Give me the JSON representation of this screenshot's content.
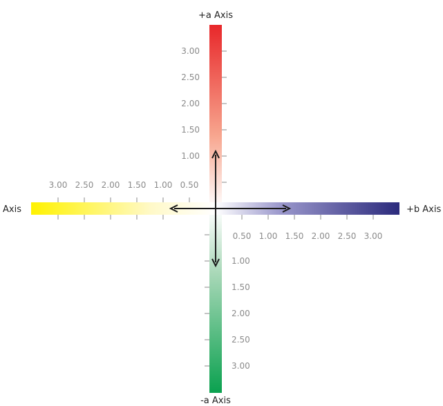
{
  "labels": {
    "pos_a": "+a Axis",
    "neg_a": "-a Axis",
    "pos_b": "+b Axis",
    "neg_b": "Axis"
  },
  "ticks": {
    "pos_a": [
      "3.00",
      "2.50",
      "2.00",
      "1.50",
      "1.00"
    ],
    "neg_a": [
      "1.00",
      "1.50",
      "2.00",
      "2.50",
      "3.00"
    ],
    "pos_b": [
      "0.50",
      "1.00",
      "1.50",
      "2.00",
      "2.50",
      "3.00"
    ],
    "neg_b": [
      "3.00",
      "2.50",
      "2.00",
      "1.50",
      "1.00",
      "0.50"
    ]
  },
  "colors": {
    "pos_a": "#e8272a",
    "neg_a": "#0aa14f",
    "pos_b": "#2b2a7c",
    "neg_b": "#fff200",
    "arrows": "#1a1a1a",
    "ticks": "#8a8a8a"
  }
}
